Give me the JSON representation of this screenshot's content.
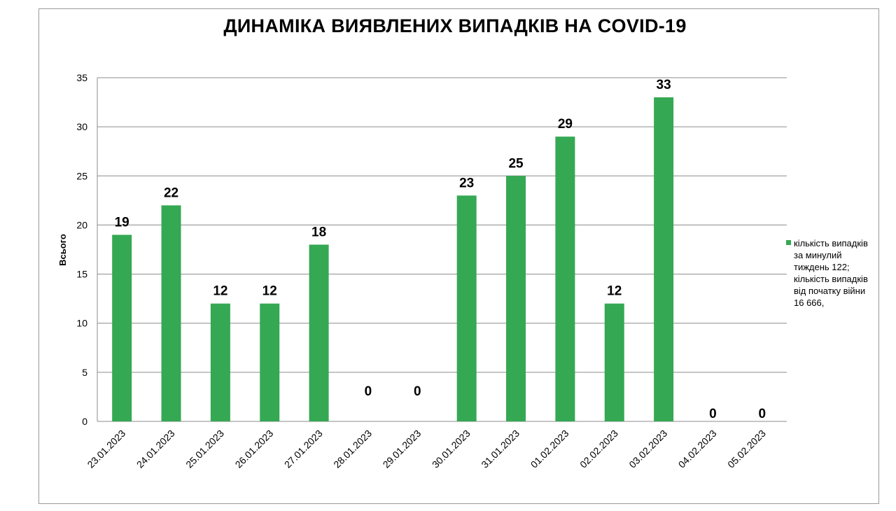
{
  "title": "ДИНАМІКА ВИЯВЛЕНИХ ВИПАДКІВ НА COVID-19",
  "chart_data": {
    "type": "bar",
    "title": "ДИНАМІКА ВИЯВЛЕНИХ ВИПАДКІВ НА COVID-19",
    "xlabel": "",
    "ylabel": "Всього",
    "ylim": [
      0,
      35
    ],
    "yticks": [
      0,
      5,
      10,
      15,
      20,
      25,
      30,
      35
    ],
    "grid": true,
    "legend_position": "right",
    "bar_color": "#35a853",
    "categories": [
      "23.01.2023",
      "24.01.2023",
      "25.01.2023",
      "26.01.2023",
      "27.01.2023",
      "28.01.2023",
      "29.01.2023",
      "30.01.2023",
      "31.01.2023",
      "01.02.2023",
      "02.02.2023",
      "03.02.2023",
      "04.02.2023",
      "05.02.2023"
    ],
    "series": [
      {
        "name": "кількість випадків за минулий тиждень 122; кількість випадків від початку війни 16 666,",
        "values": [
          19,
          22,
          12,
          12,
          18,
          0,
          0,
          23,
          25,
          29,
          12,
          33,
          0,
          0
        ]
      }
    ],
    "data_labels": [
      "19",
      "22",
      "12",
      "12",
      "18",
      "0",
      "0",
      "23",
      "25",
      "29",
      "12",
      "33",
      "0",
      "0"
    ]
  },
  "legend": {
    "lines": [
      "кількість випадків",
      "за минулий",
      "тиждень 122;",
      "кількість випадків",
      "від початку війни",
      "16 666,"
    ]
  }
}
